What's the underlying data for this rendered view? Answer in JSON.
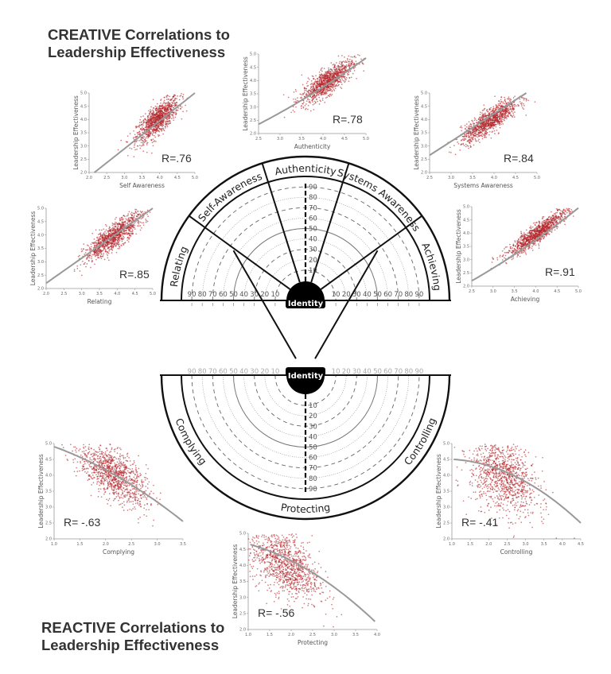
{
  "titles": {
    "creative_line1": "CREATIVE Correlations to",
    "creative_line2": "Leadership Effectiveness",
    "reactive_line1": "REACTIVE Correlations to",
    "reactive_line2": "Leadership Effectiveness"
  },
  "diagram": {
    "center_label": "Identity",
    "scale_values": [
      "10",
      "20",
      "30",
      "40",
      "50",
      "60",
      "70",
      "80",
      "90"
    ],
    "creative_segments": [
      "Relating",
      "Self-Awareness",
      "Authenticity",
      "Systems Awareness",
      "Achieving"
    ],
    "reactive_segments": [
      "Complying",
      "Protecting",
      "Controlling"
    ],
    "colors": {
      "lines": "#111111",
      "center_fill": "#000000"
    }
  },
  "chart_data": [
    {
      "id": "self-awareness",
      "type": "scatter",
      "xlabel": "Self Awareness",
      "ylabel": "Leadership Effectiveness",
      "annotation": "R=.76",
      "r": 0.76,
      "xlim": [
        2.0,
        5.0
      ],
      "ylim": [
        2.0,
        5.0
      ],
      "xticks": [
        "2.0",
        "2.5",
        "3.0",
        "3.5",
        "4.0",
        "4.5",
        "5.0"
      ],
      "yticks": [
        "2.0",
        "2.5",
        "3.0",
        "3.5",
        "4.0",
        "4.5",
        "5.0"
      ],
      "cloud_center": [
        3.95,
        4.0
      ],
      "cloud_sd_x": 0.3,
      "trend": [
        [
          2.15,
          2.0
        ],
        [
          5.0,
          5.0
        ]
      ],
      "point_color": "#b3262b",
      "trend_color": "#999999"
    },
    {
      "id": "authenticity",
      "type": "scatter",
      "xlabel": "Authenticity",
      "ylabel": "Leadership Effectiveness",
      "annotation": "R=.78",
      "r": 0.78,
      "xlim": [
        2.5,
        5.0
      ],
      "ylim": [
        2.0,
        5.0
      ],
      "xticks": [
        "2.5",
        "3.0",
        "3.5",
        "4.0",
        "4.5",
        "5.0"
      ],
      "yticks": [
        "2.0",
        "2.5",
        "3.0",
        "3.5",
        "4.0",
        "4.5",
        "5.0"
      ],
      "cloud_center": [
        4.1,
        3.95
      ],
      "cloud_sd_x": 0.3,
      "trend": [
        [
          2.5,
          2.35
        ],
        [
          3.7,
          3.45
        ],
        [
          5.0,
          4.85
        ]
      ],
      "point_color": "#b3262b",
      "trend_color": "#999999"
    },
    {
      "id": "systems-awareness",
      "type": "scatter",
      "xlabel": "Systems Awareness",
      "ylabel": "Leadership Effectiveness",
      "annotation": "R=.84",
      "r": 0.84,
      "xlim": [
        2.5,
        5.0
      ],
      "ylim": [
        2.0,
        5.0
      ],
      "xticks": [
        "2.5",
        "3.0",
        "3.5",
        "4.0",
        "4.5",
        "5.0"
      ],
      "yticks": [
        "2.0",
        "2.5",
        "3.0",
        "3.5",
        "4.0",
        "4.5",
        "5.0"
      ],
      "cloud_center": [
        3.9,
        3.95
      ],
      "cloud_sd_x": 0.33,
      "trend": [
        [
          2.5,
          2.65
        ],
        [
          4.75,
          5.0
        ]
      ],
      "point_color": "#b3262b",
      "trend_color": "#999999"
    },
    {
      "id": "relating",
      "type": "scatter",
      "xlabel": "Relating",
      "ylabel": "Leadership Effectiveness",
      "annotation": "R=.85",
      "r": 0.85,
      "xlim": [
        2.0,
        5.0
      ],
      "ylim": [
        2.0,
        5.0
      ],
      "xticks": [
        "2.0",
        "2.5",
        "3.0",
        "3.5",
        "4.0",
        "4.5",
        "5.0"
      ],
      "yticks": [
        "2.0",
        "2.5",
        "3.0",
        "3.5",
        "4.0",
        "4.5",
        "5.0"
      ],
      "cloud_center": [
        3.9,
        3.95
      ],
      "cloud_sd_x": 0.4,
      "trend": [
        [
          2.0,
          2.2
        ],
        [
          5.0,
          5.0
        ]
      ],
      "point_color": "#b3262b",
      "trend_color": "#999999"
    },
    {
      "id": "achieving",
      "type": "scatter",
      "xlabel": "Achieving",
      "ylabel": "Leadership Effectiveness",
      "annotation": "R=.91",
      "r": 0.91,
      "xlim": [
        2.5,
        5.0
      ],
      "ylim": [
        2.0,
        5.0
      ],
      "xticks": [
        "2.5",
        "3.0",
        "3.5",
        "4.0",
        "4.5",
        "5.0"
      ],
      "yticks": [
        "2.0",
        "2.5",
        "3.0",
        "3.5",
        "4.0",
        "4.5",
        "5.0"
      ],
      "cloud_center": [
        4.05,
        4.0
      ],
      "cloud_sd_x": 0.35,
      "trend": [
        [
          2.5,
          2.2
        ],
        [
          3.6,
          3.3
        ],
        [
          5.0,
          4.95
        ]
      ],
      "point_color": "#b3262b",
      "trend_color": "#999999"
    },
    {
      "id": "complying",
      "type": "scatter",
      "xlabel": "Complying",
      "ylabel": "Leadership Effectiveness",
      "annotation": "R= -.63",
      "r": -0.63,
      "xlim": [
        1.0,
        3.5
      ],
      "ylim": [
        2.0,
        5.0
      ],
      "xticks": [
        "1.0",
        "1.5",
        "2.0",
        "2.5",
        "3.0",
        "3.5"
      ],
      "yticks": [
        "2.0",
        "2.5",
        "3.0",
        "3.5",
        "4.0",
        "4.5",
        "5.0"
      ],
      "cloud_center": [
        2.15,
        4.05
      ],
      "cloud_sd_x": 0.33,
      "trend": [
        [
          1.0,
          4.9
        ],
        [
          2.5,
          3.7
        ],
        [
          3.5,
          2.55
        ]
      ],
      "point_color": "#b3262b",
      "trend_color": "#999999"
    },
    {
      "id": "protecting",
      "type": "scatter",
      "xlabel": "Protecting",
      "ylabel": "Leadership Effectiveness",
      "annotation": "R= -.56",
      "r": -0.56,
      "xlim": [
        1.0,
        4.0
      ],
      "ylim": [
        2.0,
        5.0
      ],
      "xticks": [
        "1.0",
        "1.5",
        "2.0",
        "2.5",
        "3.0",
        "3.5",
        "4.0"
      ],
      "yticks": [
        "2.0",
        "2.5",
        "3.0",
        "3.5",
        "4.0",
        "4.5",
        "5.0"
      ],
      "cloud_center": [
        1.85,
        4.05
      ],
      "cloud_sd_x": 0.4,
      "trend": [
        [
          1.05,
          4.65
        ],
        [
          2.7,
          3.6
        ],
        [
          3.95,
          2.25
        ]
      ],
      "point_color": "#b3262b",
      "trend_color": "#999999"
    },
    {
      "id": "controlling",
      "type": "scatter",
      "xlabel": "Controlling",
      "ylabel": "Leadership Effectiveness",
      "annotation": "R= -.41",
      "r": -0.41,
      "xlim": [
        1.0,
        4.5
      ],
      "ylim": [
        2.0,
        5.0
      ],
      "xticks": [
        "1.0",
        "1.5",
        "2.0",
        "2.5",
        "3.0",
        "3.5",
        "4.0",
        "4.5"
      ],
      "yticks": [
        "2.0",
        "2.5",
        "3.0",
        "3.5",
        "4.0",
        "4.5",
        "5.0"
      ],
      "cloud_center": [
        2.4,
        4.0
      ],
      "cloud_sd_x": 0.45,
      "trend": [
        [
          1.05,
          4.5
        ],
        [
          3.0,
          3.8
        ],
        [
          4.5,
          2.5
        ]
      ],
      "point_color": "#b3262b",
      "trend_color": "#999999"
    }
  ]
}
